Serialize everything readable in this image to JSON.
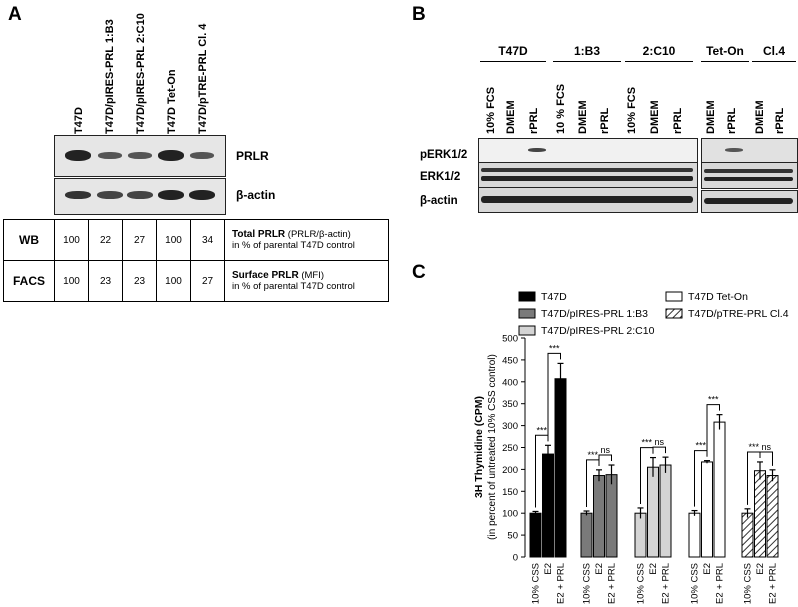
{
  "panel_a": {
    "letter": "A",
    "lanes": [
      "T47D",
      "T47D/pIRES-PRL 1:B3",
      "T47D/pIRES-PRL 2:C10",
      "T47D Tet-On",
      "T47D/pTRE-PRL Cl. 4"
    ],
    "blots": [
      "PRLR",
      "β-actin"
    ],
    "table": [
      {
        "method": "WB",
        "values": [
          "100",
          "22",
          "27",
          "100",
          "34"
        ],
        "desc_bold": "Total PRLR",
        "desc_rest": " (PRLR/β-actin)",
        "desc_sub": "in % of parental T47D control"
      },
      {
        "method": "FACS",
        "values": [
          "100",
          "23",
          "23",
          "100",
          "27"
        ],
        "desc_bold": "Surface PRLR",
        "desc_rest": " (MFI)",
        "desc_sub": "in % of parental T47D control"
      }
    ]
  },
  "panel_b": {
    "letter": "B",
    "groups": [
      "T47D",
      "1:B3",
      "2:C10",
      "Tet-On",
      "Cl.4"
    ],
    "lanes": [
      "10% FCS",
      "DMEM",
      "rPRL",
      "10 % FCS",
      "DMEM",
      "rPRL",
      "10% FCS",
      "DMEM",
      "rPRL",
      "DMEM",
      "rPRL",
      "DMEM",
      "rPRL"
    ],
    "rows": [
      "pERK1/2",
      "ERK1/2",
      "β-actin"
    ]
  },
  "panel_c": {
    "letter": "C",
    "legend": [
      {
        "label": "T47D",
        "style": "black"
      },
      {
        "label": "T47D/pIRES-PRL 1:B3",
        "style": "dark"
      },
      {
        "label": "T47D/pIRES-PRL 2:C10",
        "style": "light"
      },
      {
        "label": "T47D Tet-On",
        "style": "white"
      },
      {
        "label": "T47D/pTRE-PRL Cl.4",
        "style": "hatch"
      }
    ],
    "ylabel": "3H Thymidine (CPM)",
    "ylabel2": "(in percent of untreated 10% CSS control)",
    "sig_star": "***",
    "sig_ns": "ns"
  },
  "chart_data": {
    "type": "bar",
    "categories": [
      "10% CSS",
      "E2",
      "E2 + PRL"
    ],
    "ylim": [
      0,
      500
    ],
    "yticks": [
      0,
      50,
      100,
      150,
      200,
      250,
      300,
      350,
      400,
      450,
      500
    ],
    "ylabel": "3H Thymidine (CPM)",
    "series": [
      {
        "name": "T47D",
        "values": [
          100,
          235,
          407
        ],
        "errors": [
          4,
          20,
          35
        ]
      },
      {
        "name": "T47D/pIRES-PRL 1:B3",
        "values": [
          100,
          186,
          188
        ],
        "errors": [
          5,
          13,
          22
        ]
      },
      {
        "name": "T47D/pIRES-PRL 2:C10",
        "values": [
          100,
          205,
          210
        ],
        "errors": [
          12,
          22,
          18
        ]
      },
      {
        "name": "T47D Tet-On",
        "values": [
          100,
          217,
          308
        ],
        "errors": [
          6,
          3,
          17
        ]
      },
      {
        "name": "T47D/pTRE-PRL Cl.4",
        "values": [
          100,
          197,
          186
        ],
        "errors": [
          10,
          20,
          13
        ]
      }
    ]
  }
}
